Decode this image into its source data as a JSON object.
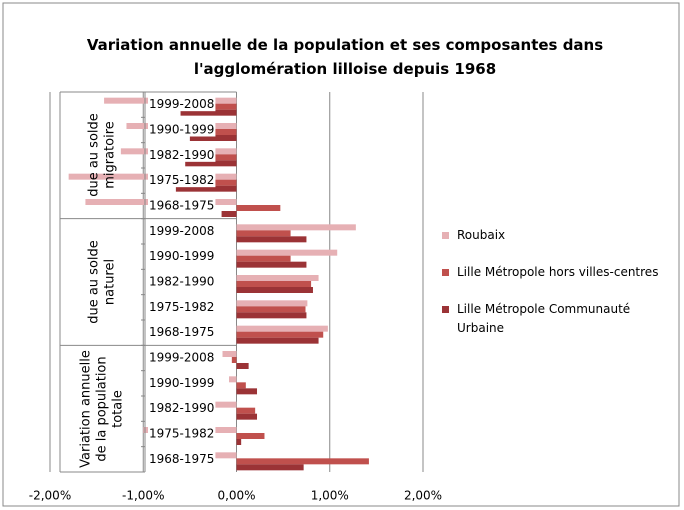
{
  "chart_data": {
    "type": "bar",
    "orientation": "horizontal",
    "title": "Variation annuelle de la population et ses composantes dans l'agglomération lilloise depuis 1968",
    "groups": [
      {
        "label": "due au solde migratoire",
        "categories": [
          "1999-2008",
          "1990-1999",
          "1982-1990",
          "1975-1982",
          "1968-1975"
        ]
      },
      {
        "label": "due au solde naturel",
        "categories": [
          "1999-2008",
          "1990-1999",
          "1982-1990",
          "1975-1982",
          "1968-1975"
        ]
      },
      {
        "label": "Variation annuelle de la population totale",
        "categories": [
          "1999-2008",
          "1990-1999",
          "1982-1990",
          "1975-1982",
          "1968-1975"
        ]
      }
    ],
    "series": [
      {
        "name": "Roubaix",
        "color": "#e6b0b4",
        "values": [
          -1.42,
          -1.18,
          -1.24,
          -1.8,
          -1.62,
          1.28,
          1.08,
          0.88,
          0.76,
          0.98,
          -0.15,
          -0.08,
          -0.45,
          -1.0,
          -0.62
        ]
      },
      {
        "name": "Lille Métropole hors villes-centres",
        "color": "#c0504d",
        "values": [
          -0.62,
          -0.48,
          -0.62,
          -0.68,
          0.47,
          0.58,
          0.58,
          0.8,
          0.74,
          0.93,
          -0.05,
          0.1,
          0.2,
          0.3,
          1.42
        ]
      },
      {
        "name": "Lille Métropole Communauté Urbaine",
        "color": "#9b3336",
        "values": [
          -0.6,
          -0.5,
          -0.55,
          -0.65,
          -0.16,
          0.75,
          0.75,
          0.82,
          0.75,
          0.88,
          0.13,
          0.22,
          0.22,
          0.05,
          0.72
        ]
      }
    ],
    "xlim": [
      -2,
      2
    ],
    "xticks": [
      {
        "value": -2,
        "label": "-2,00%"
      },
      {
        "value": -1,
        "label": "-1,00%"
      },
      {
        "value": 0,
        "label": "0,00%"
      },
      {
        "value": 1,
        "label": "1,00%"
      },
      {
        "value": 2,
        "label": "2,00%"
      }
    ],
    "grid": true,
    "legend": "right"
  }
}
